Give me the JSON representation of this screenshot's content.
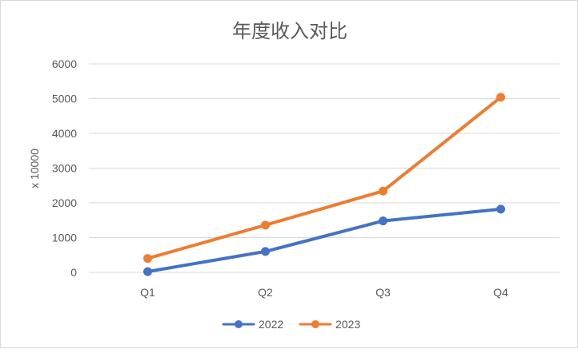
{
  "chart_data": {
    "type": "line",
    "title": "年度收入对比",
    "xlabel": "",
    "ylabel": "x 10000",
    "categories": [
      "Q1",
      "Q2",
      "Q3",
      "Q4"
    ],
    "ylim": [
      0,
      6000
    ],
    "yticks": [
      "0",
      "1000",
      "2000",
      "3000",
      "4000",
      "5000",
      "6000"
    ],
    "grid": "horizontal",
    "legend_position": "bottom",
    "series": [
      {
        "name": "2022",
        "color": "#4472C4",
        "values": [
          20,
          600,
          1480,
          1820
        ]
      },
      {
        "name": "2023",
        "color": "#ED7D31",
        "values": [
          400,
          1360,
          2340,
          5040
        ]
      }
    ]
  }
}
